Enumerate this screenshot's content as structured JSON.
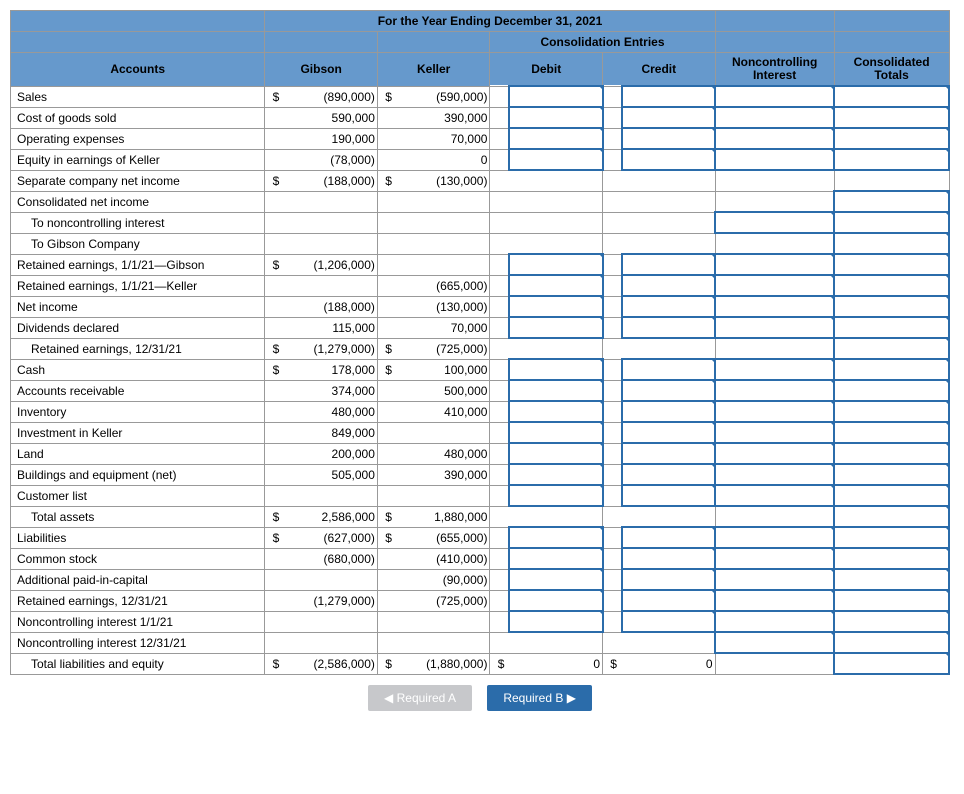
{
  "title": "For the Year Ending December 31, 2021",
  "consolEntries": "Consolidation Entries",
  "headers": {
    "accounts": "Accounts",
    "gibson": "Gibson",
    "keller": "Keller",
    "debit": "Debit",
    "credit": "Credit",
    "nci": "Noncontrolling Interest",
    "totals": "Consolidated Totals"
  },
  "rows": [
    {
      "label": "Sales",
      "indent": 0,
      "gibsonSym": "$",
      "gibson": "(890,000)",
      "kellerSym": "$",
      "keller": "(590,000)",
      "inputs": [
        "d",
        "c",
        "n",
        "t"
      ]
    },
    {
      "label": "Cost of goods sold",
      "indent": 0,
      "gibson": "590,000",
      "keller": "390,000",
      "inputs": [
        "d",
        "c",
        "n",
        "t"
      ]
    },
    {
      "label": "Operating expenses",
      "indent": 0,
      "gibson": "190,000",
      "keller": "70,000",
      "inputs": [
        "d",
        "c",
        "n",
        "t"
      ]
    },
    {
      "label": "Equity in earnings of Keller",
      "indent": 0,
      "gibson": "(78,000)",
      "keller": "0",
      "inputs": [
        "d",
        "c",
        "n",
        "t"
      ]
    },
    {
      "label": "Separate company net income",
      "indent": 0,
      "gibsonSym": "$",
      "gibson": "(188,000)",
      "kellerSym": "$",
      "keller": "(130,000)",
      "inputs": []
    },
    {
      "label": "Consolidated net income",
      "indent": 0,
      "inputs": [
        "t"
      ]
    },
    {
      "label": "To noncontrolling interest",
      "indent": 1,
      "inputs": [
        "n",
        "t"
      ]
    },
    {
      "label": "To Gibson Company",
      "indent": 1,
      "inputs": [
        "t"
      ]
    },
    {
      "label": "Retained earnings, 1/1/21—Gibson",
      "indent": 0,
      "gibsonSym": "$",
      "gibson": "(1,206,000)",
      "inputs": [
        "d",
        "c",
        "n",
        "t"
      ]
    },
    {
      "label": "Retained earnings, 1/1/21—Keller",
      "indent": 0,
      "keller": "(665,000)",
      "inputs": [
        "d",
        "c",
        "n",
        "t"
      ]
    },
    {
      "label": "Net income",
      "indent": 0,
      "gibson": "(188,000)",
      "keller": "(130,000)",
      "inputs": [
        "d",
        "c",
        "n",
        "t"
      ]
    },
    {
      "label": "Dividends declared",
      "indent": 0,
      "gibson": "115,000",
      "keller": "70,000",
      "inputs": [
        "d",
        "c",
        "n",
        "t"
      ]
    },
    {
      "label": "Retained earnings, 12/31/21",
      "indent": 1,
      "gibsonSym": "$",
      "gibson": "(1,279,000)",
      "kellerSym": "$",
      "keller": "(725,000)",
      "inputs": [
        "t"
      ]
    },
    {
      "label": "Cash",
      "indent": 0,
      "gibsonSym": "$",
      "gibson": "178,000",
      "kellerSym": "$",
      "keller": "100,000",
      "inputs": [
        "d",
        "c",
        "n",
        "t"
      ]
    },
    {
      "label": "Accounts receivable",
      "indent": 0,
      "gibson": "374,000",
      "keller": "500,000",
      "inputs": [
        "d",
        "c",
        "n",
        "t"
      ]
    },
    {
      "label": "Inventory",
      "indent": 0,
      "gibson": "480,000",
      "keller": "410,000",
      "inputs": [
        "d",
        "c",
        "n",
        "t"
      ]
    },
    {
      "label": "Investment in Keller",
      "indent": 0,
      "gibson": "849,000",
      "inputs": [
        "d",
        "c",
        "n",
        "t"
      ]
    },
    {
      "label": "Land",
      "indent": 0,
      "gibson": "200,000",
      "keller": "480,000",
      "inputs": [
        "d",
        "c",
        "n",
        "t"
      ]
    },
    {
      "label": "Buildings and equipment (net)",
      "indent": 0,
      "gibson": "505,000",
      "keller": "390,000",
      "inputs": [
        "d",
        "c",
        "n",
        "t"
      ]
    },
    {
      "label": "Customer list",
      "indent": 0,
      "inputs": [
        "d",
        "c",
        "n",
        "t"
      ]
    },
    {
      "label": "Total assets",
      "indent": 1,
      "gibsonSym": "$",
      "gibson": "2,586,000",
      "kellerSym": "$",
      "keller": "1,880,000",
      "inputs": [
        "t"
      ]
    },
    {
      "label": "Liabilities",
      "indent": 0,
      "gibsonSym": "$",
      "gibson": "(627,000)",
      "kellerSym": "$",
      "keller": "(655,000)",
      "inputs": [
        "d",
        "c",
        "n",
        "t"
      ]
    },
    {
      "label": "Common stock",
      "indent": 0,
      "gibson": "(680,000)",
      "keller": "(410,000)",
      "inputs": [
        "d",
        "c",
        "n",
        "t"
      ]
    },
    {
      "label": "Additional paid-in-capital",
      "indent": 0,
      "keller": "(90,000)",
      "inputs": [
        "d",
        "c",
        "n",
        "t"
      ]
    },
    {
      "label": "Retained earnings, 12/31/21",
      "indent": 0,
      "gibson": "(1,279,000)",
      "keller": "(725,000)",
      "inputs": [
        "d",
        "c",
        "n",
        "t"
      ]
    },
    {
      "label": "Noncontrolling interest 1/1/21",
      "indent": 0,
      "inputs": [
        "d",
        "c",
        "n",
        "t"
      ]
    },
    {
      "label": "Noncontrolling interest 12/31/21",
      "indent": 0,
      "inputs": [
        "n",
        "t"
      ]
    },
    {
      "label": "Total liabilities and equity",
      "indent": 1,
      "gibsonSym": "$",
      "gibson": "(2,586,000)",
      "kellerSym": "$",
      "keller": "(1,880,000)",
      "debitSym": "$",
      "debit": "0",
      "creditSym": "$",
      "credit": "0",
      "inputs": [
        "t"
      ]
    }
  ],
  "buttons": {
    "reqA": "Required A",
    "reqB": "Required B"
  },
  "colors": {
    "headerBg": "#6699cc",
    "inputBorder": "#2b6caa",
    "btnGray": "#c7c8cb",
    "btnBlue": "#2b6caa"
  }
}
